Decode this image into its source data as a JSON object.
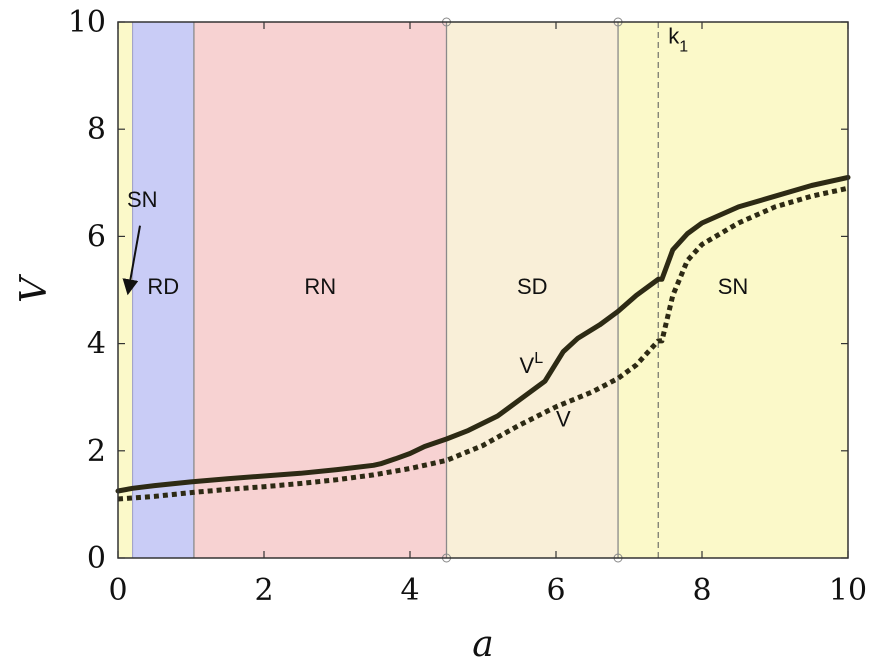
{
  "chart_data": {
    "type": "line",
    "xlabel": "a",
    "ylabel": "V",
    "xlim": [
      0,
      10
    ],
    "ylim": [
      0,
      10
    ],
    "x_ticks": [
      "0",
      "2",
      "4",
      "6",
      "8",
      "10"
    ],
    "y_ticks": [
      "0",
      "2",
      "4",
      "6",
      "8",
      "10"
    ],
    "grid": false,
    "regions": [
      {
        "label": "",
        "from": 0,
        "to": 0.2,
        "color": "#fbf9c9"
      },
      {
        "label": "RD",
        "from": 0.2,
        "to": 1.04,
        "color": "#c9ccf6"
      },
      {
        "label": "RN",
        "from": 1.04,
        "to": 4.5,
        "color": "#f7d2d2"
      },
      {
        "label": "SD",
        "from": 4.5,
        "to": 6.85,
        "color": "#f9efd8"
      },
      {
        "label": "SN",
        "from": 6.85,
        "to": 10,
        "color": "#fbf9c9"
      }
    ],
    "boundaries": [
      1.04,
      4.5,
      6.85
    ],
    "dashed_line": {
      "label": "k",
      "label_sub": "1",
      "x": 7.4
    },
    "annotations": [
      {
        "text": "SN",
        "target_x": 0.1,
        "target_y": 4.9
      },
      {
        "text": "V",
        "sup": "L",
        "x": 5.5,
        "y": 3.45
      },
      {
        "text": "V",
        "x": 6.0,
        "y": 2.45
      }
    ],
    "series": [
      {
        "name": "V",
        "sup": "L",
        "style": "solid",
        "color": "#2d2a14",
        "x": [
          0,
          0.2,
          0.5,
          1.0,
          1.5,
          2.0,
          2.5,
          3.0,
          3.5,
          3.6,
          3.8,
          4.0,
          4.2,
          4.5,
          4.8,
          5.2,
          5.5,
          5.85,
          6.1,
          6.3,
          6.6,
          6.85,
          7.1,
          7.4,
          7.45,
          7.6,
          7.8,
          8.0,
          8.5,
          9.0,
          9.5,
          10.0
        ],
        "y": [
          1.25,
          1.3,
          1.35,
          1.42,
          1.48,
          1.53,
          1.58,
          1.65,
          1.73,
          1.76,
          1.85,
          1.95,
          2.08,
          2.22,
          2.38,
          2.65,
          2.95,
          3.3,
          3.85,
          4.1,
          4.35,
          4.6,
          4.9,
          5.2,
          5.2,
          5.75,
          6.05,
          6.25,
          6.55,
          6.75,
          6.95,
          7.1
        ]
      },
      {
        "name": "V",
        "style": "dotted",
        "color": "#2d2a14",
        "x": [
          0,
          0.5,
          1.0,
          1.5,
          2.0,
          2.5,
          3.0,
          3.5,
          4.0,
          4.5,
          5.0,
          5.5,
          6.0,
          6.5,
          6.85,
          7.1,
          7.4,
          7.45,
          7.6,
          7.8,
          8.0,
          8.5,
          9.0,
          9.5,
          10.0
        ],
        "y": [
          1.1,
          1.15,
          1.22,
          1.28,
          1.33,
          1.39,
          1.46,
          1.55,
          1.67,
          1.82,
          2.1,
          2.48,
          2.82,
          3.1,
          3.35,
          3.6,
          4.05,
          4.05,
          4.9,
          5.55,
          5.85,
          6.25,
          6.55,
          6.75,
          6.9
        ]
      }
    ]
  }
}
